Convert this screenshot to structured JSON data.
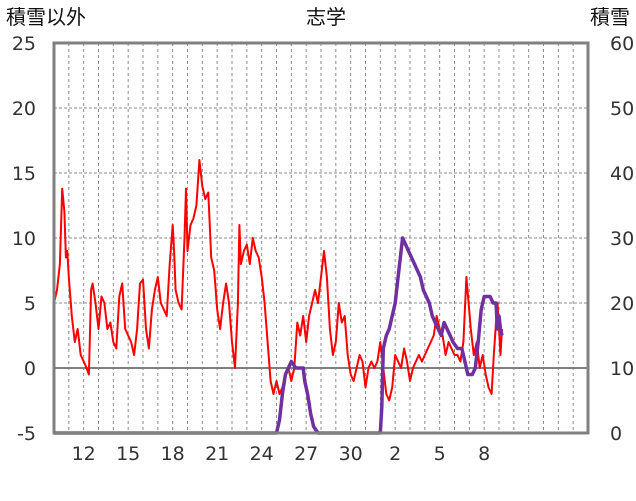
{
  "chart_data": {
    "type": "line",
    "title": "志学",
    "left_axis_label": "積雪以外",
    "right_axis_label": "積雪",
    "left_ylim": [
      -5,
      25
    ],
    "left_yticks": [
      -5,
      0,
      5,
      10,
      15,
      20,
      25
    ],
    "right_ylim": [
      0,
      60
    ],
    "right_yticks": [
      0,
      10,
      20,
      30,
      40,
      50,
      60
    ],
    "xlim": [
      0,
      36
    ],
    "x_ticks": [
      {
        "x": 2,
        "label": "12"
      },
      {
        "x": 5,
        "label": "15"
      },
      {
        "x": 8,
        "label": "18"
      },
      {
        "x": 11,
        "label": "21"
      },
      {
        "x": 14,
        "label": "24"
      },
      {
        "x": 17,
        "label": "27"
      },
      {
        "x": 20,
        "label": "30"
      },
      {
        "x": 23,
        "label": "2"
      },
      {
        "x": 26,
        "label": "5"
      },
      {
        "x": 29,
        "label": "8"
      }
    ],
    "grid": {
      "vertical": "dashed daily",
      "horizontal": "dashed"
    },
    "colors": {
      "series_red": "#ff0000",
      "series_purple": "#7030a0",
      "zero_line": "#7f7f7f",
      "frame": "#808080"
    },
    "series": [
      {
        "axis": "left",
        "color": "#ff0000",
        "points": [
          [
            0.0,
            5.0
          ],
          [
            0.2,
            6.0
          ],
          [
            0.4,
            8.0
          ],
          [
            0.55,
            13.8
          ],
          [
            0.7,
            12.0
          ],
          [
            0.8,
            8.5
          ],
          [
            0.9,
            9.0
          ],
          [
            1.0,
            7.0
          ],
          [
            1.2,
            4.0
          ],
          [
            1.4,
            2.0
          ],
          [
            1.6,
            3.0
          ],
          [
            1.8,
            1.0
          ],
          [
            2.0,
            0.5
          ],
          [
            2.2,
            0.0
          ],
          [
            2.35,
            -0.5
          ],
          [
            2.5,
            6.0
          ],
          [
            2.6,
            6.5
          ],
          [
            2.8,
            5.0
          ],
          [
            3.0,
            3.0
          ],
          [
            3.2,
            5.5
          ],
          [
            3.4,
            5.0
          ],
          [
            3.6,
            3.0
          ],
          [
            3.8,
            3.5
          ],
          [
            4.0,
            2.0
          ],
          [
            4.2,
            1.5
          ],
          [
            4.4,
            5.5
          ],
          [
            4.6,
            6.5
          ],
          [
            4.8,
            3.0
          ],
          [
            5.0,
            2.5
          ],
          [
            5.2,
            2.0
          ],
          [
            5.4,
            1.0
          ],
          [
            5.6,
            3.0
          ],
          [
            5.8,
            6.5
          ],
          [
            6.0,
            6.8
          ],
          [
            6.2,
            3.0
          ],
          [
            6.4,
            1.5
          ],
          [
            6.6,
            4.5
          ],
          [
            6.8,
            6.0
          ],
          [
            7.0,
            7.0
          ],
          [
            7.2,
            5.0
          ],
          [
            7.4,
            4.5
          ],
          [
            7.6,
            4.0
          ],
          [
            7.8,
            8.0
          ],
          [
            8.0,
            11.0
          ],
          [
            8.1,
            9.0
          ],
          [
            8.2,
            6.0
          ],
          [
            8.4,
            5.0
          ],
          [
            8.6,
            4.5
          ],
          [
            8.8,
            10.0
          ],
          [
            8.9,
            13.8
          ],
          [
            9.0,
            9.0
          ],
          [
            9.2,
            11.0
          ],
          [
            9.4,
            11.5
          ],
          [
            9.6,
            12.5
          ],
          [
            9.8,
            16.0
          ],
          [
            10.0,
            14.0
          ],
          [
            10.2,
            13.0
          ],
          [
            10.4,
            13.5
          ],
          [
            10.6,
            8.5
          ],
          [
            10.8,
            7.5
          ],
          [
            11.0,
            4.5
          ],
          [
            11.2,
            3.0
          ],
          [
            11.4,
            5.0
          ],
          [
            11.6,
            6.5
          ],
          [
            11.8,
            5.0
          ],
          [
            12.0,
            2.0
          ],
          [
            12.2,
            0.0
          ],
          [
            12.4,
            5.0
          ],
          [
            12.5,
            11.0
          ],
          [
            12.6,
            8.0
          ],
          [
            12.8,
            9.0
          ],
          [
            13.0,
            9.5
          ],
          [
            13.2,
            8.0
          ],
          [
            13.4,
            10.0
          ],
          [
            13.6,
            9.0
          ],
          [
            13.8,
            8.5
          ],
          [
            14.0,
            7.0
          ],
          [
            14.2,
            5.0
          ],
          [
            14.4,
            2.0
          ],
          [
            14.6,
            -1.0
          ],
          [
            14.8,
            -2.0
          ],
          [
            15.0,
            -1.0
          ],
          [
            15.2,
            -2.0
          ],
          [
            15.4,
            -1.5
          ],
          [
            15.6,
            -0.5
          ],
          [
            15.8,
            0.0
          ],
          [
            16.0,
            -1.0
          ],
          [
            16.2,
            0.0
          ],
          [
            16.4,
            3.5
          ],
          [
            16.6,
            2.5
          ],
          [
            16.8,
            4.0
          ],
          [
            17.0,
            2.0
          ],
          [
            17.2,
            4.0
          ],
          [
            17.4,
            5.0
          ],
          [
            17.6,
            6.0
          ],
          [
            17.8,
            5.0
          ],
          [
            18.0,
            7.0
          ],
          [
            18.2,
            9.0
          ],
          [
            18.4,
            7.0
          ],
          [
            18.6,
            3.0
          ],
          [
            18.8,
            1.0
          ],
          [
            19.0,
            2.0
          ],
          [
            19.2,
            5.0
          ],
          [
            19.4,
            3.5
          ],
          [
            19.6,
            4.0
          ],
          [
            19.8,
            1.0
          ],
          [
            20.0,
            -0.5
          ],
          [
            20.2,
            -1.0
          ],
          [
            20.4,
            0.0
          ],
          [
            20.6,
            1.0
          ],
          [
            20.8,
            0.5
          ],
          [
            21.0,
            -1.5
          ],
          [
            21.2,
            0.0
          ],
          [
            21.4,
            0.5
          ],
          [
            21.6,
            0.0
          ],
          [
            21.8,
            0.5
          ],
          [
            22.0,
            2.0
          ],
          [
            22.2,
            0.0
          ],
          [
            22.4,
            -2.0
          ],
          [
            22.6,
            -2.5
          ],
          [
            22.8,
            -1.5
          ],
          [
            23.0,
            1.0
          ],
          [
            23.2,
            0.5
          ],
          [
            23.4,
            0.0
          ],
          [
            23.6,
            1.5
          ],
          [
            23.8,
            0.5
          ],
          [
            24.0,
            -1.0
          ],
          [
            24.2,
            0.0
          ],
          [
            24.4,
            0.5
          ],
          [
            24.6,
            1.0
          ],
          [
            24.8,
            0.5
          ],
          [
            25.0,
            1.0
          ],
          [
            25.2,
            1.5
          ],
          [
            25.4,
            2.0
          ],
          [
            25.6,
            2.5
          ],
          [
            25.8,
            4.0
          ],
          [
            26.0,
            3.0
          ],
          [
            26.2,
            2.5
          ],
          [
            26.4,
            1.0
          ],
          [
            26.6,
            2.0
          ],
          [
            26.8,
            1.5
          ],
          [
            27.0,
            1.0
          ],
          [
            27.2,
            1.0
          ],
          [
            27.4,
            0.5
          ],
          [
            27.6,
            2.0
          ],
          [
            27.8,
            7.0
          ],
          [
            27.95,
            5.0
          ],
          [
            28.1,
            3.0
          ],
          [
            28.3,
            1.0
          ],
          [
            28.5,
            2.0
          ],
          [
            28.7,
            0.0
          ],
          [
            28.9,
            1.0
          ],
          [
            29.1,
            -0.5
          ],
          [
            29.3,
            -1.5
          ],
          [
            29.5,
            -2.0
          ],
          [
            29.65,
            1.0
          ],
          [
            29.8,
            3.5
          ],
          [
            29.9,
            5.0
          ],
          [
            30.0,
            3.0
          ],
          [
            30.1,
            1.0
          ],
          [
            30.2,
            3.0
          ]
        ]
      },
      {
        "axis": "right",
        "color": "#7030a0",
        "points": [
          [
            0.0,
            0
          ],
          [
            15.0,
            0
          ],
          [
            15.2,
            2
          ],
          [
            15.4,
            6
          ],
          [
            15.6,
            9
          ],
          [
            15.8,
            10
          ],
          [
            16.0,
            11
          ],
          [
            16.3,
            10
          ],
          [
            16.8,
            10
          ],
          [
            16.9,
            8
          ],
          [
            17.1,
            6
          ],
          [
            17.3,
            3
          ],
          [
            17.5,
            1
          ],
          [
            17.8,
            0
          ],
          [
            22.0,
            0
          ],
          [
            22.1,
            4
          ],
          [
            22.2,
            13
          ],
          [
            22.4,
            15
          ],
          [
            22.6,
            16
          ],
          [
            22.8,
            18
          ],
          [
            23.0,
            20
          ],
          [
            23.2,
            24
          ],
          [
            23.4,
            28
          ],
          [
            23.5,
            30
          ],
          [
            23.7,
            29
          ],
          [
            23.9,
            28
          ],
          [
            24.1,
            27
          ],
          [
            24.3,
            26
          ],
          [
            24.5,
            25
          ],
          [
            24.7,
            24
          ],
          [
            24.9,
            22
          ],
          [
            25.1,
            21
          ],
          [
            25.3,
            20
          ],
          [
            25.5,
            18
          ],
          [
            25.7,
            17
          ],
          [
            25.9,
            16
          ],
          [
            26.1,
            15
          ],
          [
            26.3,
            17
          ],
          [
            26.5,
            16
          ],
          [
            26.7,
            15
          ],
          [
            26.9,
            14
          ],
          [
            27.2,
            13
          ],
          [
            27.5,
            13
          ],
          [
            27.7,
            11
          ],
          [
            27.9,
            9
          ],
          [
            28.2,
            9
          ],
          [
            28.4,
            10
          ],
          [
            28.6,
            14
          ],
          [
            28.8,
            19
          ],
          [
            29.0,
            21
          ],
          [
            29.4,
            21
          ],
          [
            29.6,
            20
          ],
          [
            29.8,
            20
          ],
          [
            29.9,
            16
          ],
          [
            30.0,
            18
          ],
          [
            30.1,
            16
          ],
          [
            30.2,
            15
          ]
        ]
      }
    ]
  }
}
